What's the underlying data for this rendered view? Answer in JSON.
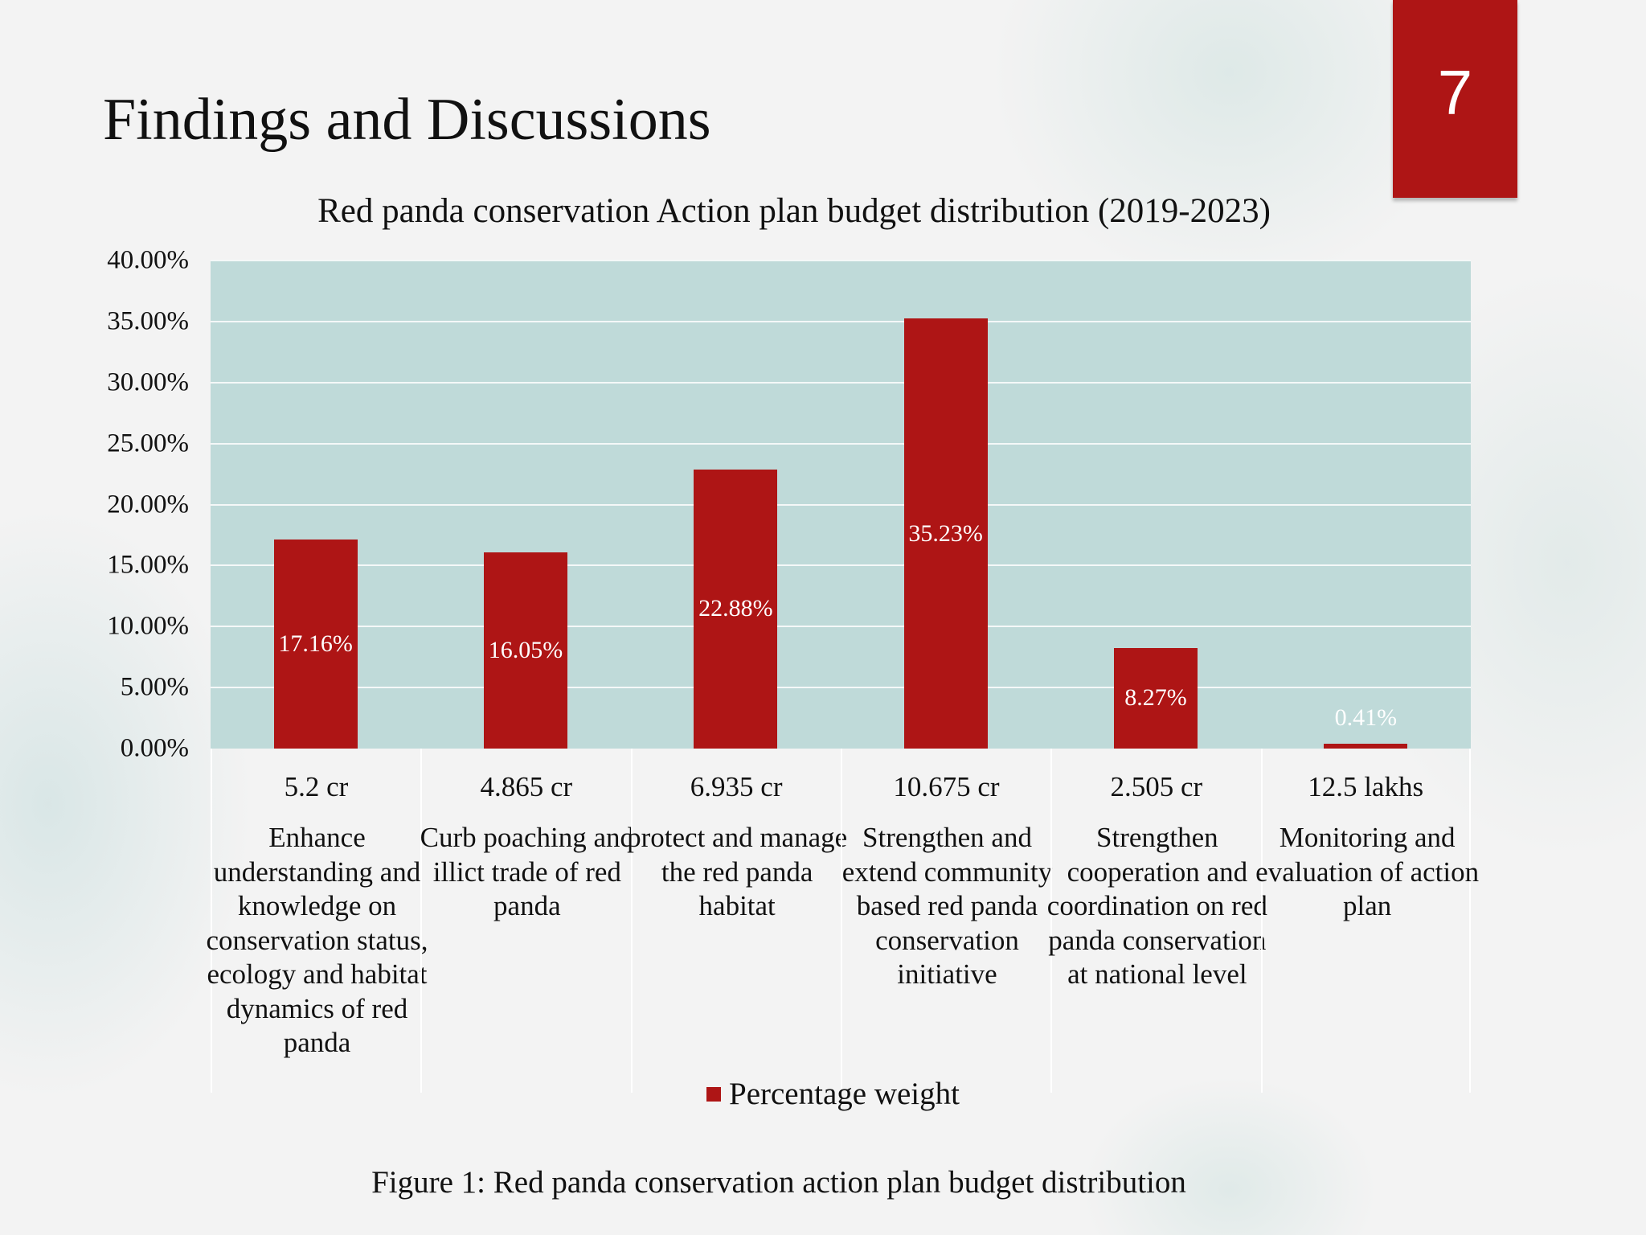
{
  "slide": {
    "title": "Findings and Discussions",
    "page_number": "7",
    "caption": "Figure 1: Red panda conservation action plan budget distribution",
    "accent_color": "#ae1515"
  },
  "chart_data": {
    "type": "bar",
    "title": "Red panda conservation Action plan budget distribution (2019-2023)",
    "xlabel": "",
    "ylabel": "",
    "ylim": [
      0,
      40
    ],
    "yticks": [
      "0.00%",
      "5.00%",
      "10.00%",
      "15.00%",
      "20.00%",
      "25.00%",
      "30.00%",
      "35.00%",
      "40.00%"
    ],
    "grid": true,
    "legend_position": "bottom",
    "categories": [
      {
        "amount": "5.2 cr",
        "label": "Enhance understanding and knowledge on conservation status, ecology and habitat dynamics of red panda"
      },
      {
        "amount": "4.865 cr",
        "label": "Curb poaching and illict trade of red panda"
      },
      {
        "amount": "6.935 cr",
        "label": "protect and manage the red panda habitat"
      },
      {
        "amount": "10.675 cr",
        "label": "Strengthen and extend community based red panda conservation initiative"
      },
      {
        "amount": "2.505 cr",
        "label": "Strengthen cooperation and coordination on red panda conservation at national level"
      },
      {
        "amount": "12.5 lakhs",
        "label": "Monitoring and evaluation of action plan"
      }
    ],
    "series": [
      {
        "name": "Percentage weight",
        "color": "#ae1515",
        "values": [
          17.16,
          16.05,
          22.88,
          35.23,
          8.27,
          0.41
        ],
        "data_labels": [
          "17.16%",
          "16.05%",
          "22.88%",
          "35.23%",
          "8.27%",
          "0.41%"
        ]
      }
    ],
    "plot_background": "#bfdad9"
  }
}
